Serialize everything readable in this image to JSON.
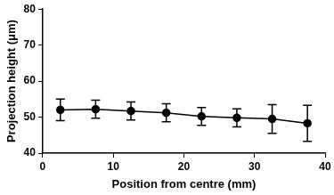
{
  "chart_data": {
    "type": "line",
    "x_label": "Position from centre (mm)",
    "y_label": "Projection height (μm)",
    "x": [
      2.5,
      7.5,
      12.5,
      17.5,
      22.5,
      27.5,
      32.5,
      37.5
    ],
    "values": [
      52,
      52.2,
      51.7,
      51.2,
      50.2,
      49.8,
      49.5,
      48.3
    ],
    "errors": [
      3,
      2.5,
      2.5,
      2.5,
      2.5,
      2.5,
      4,
      5
    ],
    "color": "#000000",
    "marker": "circle",
    "xlim": [
      0,
      40
    ],
    "xticks": [
      0,
      10,
      20,
      30,
      40
    ],
    "ylim": [
      40,
      80
    ],
    "yticks": [
      40,
      50,
      60,
      70,
      80
    ],
    "grid": false
  }
}
